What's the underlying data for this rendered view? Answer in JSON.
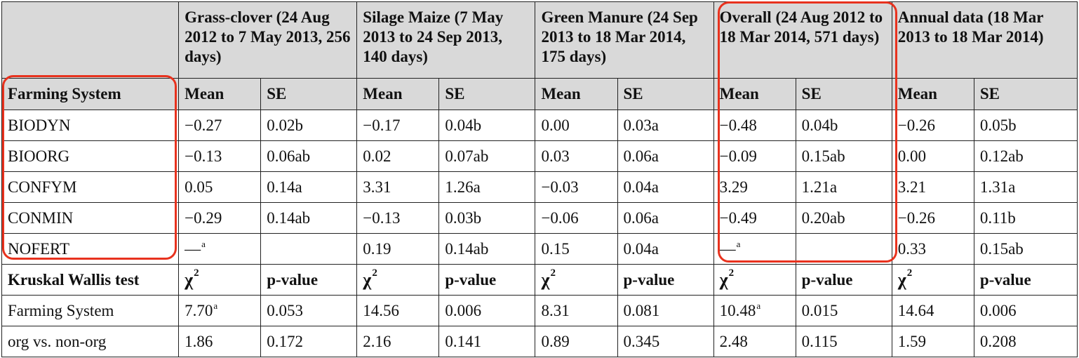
{
  "periods": [
    {
      "title": "Grass-clover (24 Aug 2012 to 7 May 2013, 256 days)"
    },
    {
      "title": "Silage Maize (7 May 2013 to 24 Sep 2013, 140 days)"
    },
    {
      "title": "Green Manure (24 Sep 2013 to 18 Mar 2014, 175 days)"
    },
    {
      "title": "Overall (24 Aug 2012 to 18 Mar 2014, 571 days)"
    },
    {
      "title": "Annual data (18 Mar 2013 to 18 Mar 2014)"
    }
  ],
  "labels": {
    "farming_system": "Farming System",
    "mean": "Mean",
    "se": "SE",
    "kruskal": "Kruskal Wallis test",
    "chi": "χ",
    "chi_sup": "2",
    "pvalue": "p-value"
  },
  "rows": [
    {
      "name": "BIODYN",
      "cells": [
        {
          "v": "−0.27",
          "s": ""
        },
        {
          "v": "0.02b",
          "s": ""
        },
        {
          "v": "−0.17",
          "s": ""
        },
        {
          "v": "0.04b",
          "s": ""
        },
        {
          "v": "0.00",
          "s": ""
        },
        {
          "v": "0.03a",
          "s": ""
        },
        {
          "v": "−0.48",
          "s": ""
        },
        {
          "v": "0.04b",
          "s": ""
        },
        {
          "v": "−0.26",
          "s": ""
        },
        {
          "v": "0.05b",
          "s": ""
        }
      ]
    },
    {
      "name": "BIOORG",
      "cells": [
        {
          "v": "−0.13",
          "s": ""
        },
        {
          "v": "0.06ab",
          "s": ""
        },
        {
          "v": "0.02",
          "s": ""
        },
        {
          "v": "0.07ab",
          "s": ""
        },
        {
          "v": "0.03",
          "s": ""
        },
        {
          "v": "0.06a",
          "s": ""
        },
        {
          "v": "−0.09",
          "s": ""
        },
        {
          "v": "0.15ab",
          "s": ""
        },
        {
          "v": "0.00",
          "s": ""
        },
        {
          "v": "0.12ab",
          "s": ""
        }
      ]
    },
    {
      "name": "CONFYM",
      "cells": [
        {
          "v": "0.05",
          "s": ""
        },
        {
          "v": "0.14a",
          "s": ""
        },
        {
          "v": "3.31",
          "s": ""
        },
        {
          "v": "1.26a",
          "s": ""
        },
        {
          "v": "−0.03",
          "s": ""
        },
        {
          "v": "0.04a",
          "s": ""
        },
        {
          "v": "3.29",
          "s": ""
        },
        {
          "v": "1.21a",
          "s": ""
        },
        {
          "v": "3.21",
          "s": ""
        },
        {
          "v": "1.31a",
          "s": ""
        }
      ]
    },
    {
      "name": "CONMIN",
      "cells": [
        {
          "v": "−0.29",
          "s": ""
        },
        {
          "v": "0.14ab",
          "s": ""
        },
        {
          "v": "−0.13",
          "s": ""
        },
        {
          "v": "0.03b",
          "s": ""
        },
        {
          "v": "−0.06",
          "s": ""
        },
        {
          "v": "0.06a",
          "s": ""
        },
        {
          "v": "−0.49",
          "s": ""
        },
        {
          "v": "0.20ab",
          "s": ""
        },
        {
          "v": "−0.26",
          "s": ""
        },
        {
          "v": "0.11b",
          "s": ""
        }
      ]
    },
    {
      "name": "NOFERT",
      "cells": [
        {
          "v": "—",
          "s": "a"
        },
        {
          "v": "",
          "s": ""
        },
        {
          "v": "0.19",
          "s": ""
        },
        {
          "v": "0.14ab",
          "s": ""
        },
        {
          "v": "0.15",
          "s": ""
        },
        {
          "v": "0.04a",
          "s": ""
        },
        {
          "v": "—",
          "s": "a"
        },
        {
          "v": "",
          "s": ""
        },
        {
          "v": "0.33",
          "s": ""
        },
        {
          "v": "0.15ab",
          "s": ""
        }
      ]
    }
  ],
  "tests": [
    {
      "name": "Farming System",
      "cells": [
        {
          "v": "7.70",
          "s": "a"
        },
        {
          "v": "0.053",
          "s": ""
        },
        {
          "v": "14.56",
          "s": ""
        },
        {
          "v": "0.006",
          "s": ""
        },
        {
          "v": "8.31",
          "s": ""
        },
        {
          "v": "0.081",
          "s": ""
        },
        {
          "v": "10.48",
          "s": "a"
        },
        {
          "v": "0.015",
          "s": ""
        },
        {
          "v": "14.64",
          "s": ""
        },
        {
          "v": "0.006",
          "s": ""
        }
      ]
    },
    {
      "name": "org vs. non-org",
      "cells": [
        {
          "v": "1.86",
          "s": ""
        },
        {
          "v": "0.172",
          "s": ""
        },
        {
          "v": "2.16",
          "s": ""
        },
        {
          "v": "0.141",
          "s": ""
        },
        {
          "v": "0.89",
          "s": ""
        },
        {
          "v": "0.345",
          "s": ""
        },
        {
          "v": "2.48",
          "s": ""
        },
        {
          "v": "0.115",
          "s": ""
        },
        {
          "v": "1.59",
          "s": ""
        },
        {
          "v": "0.208",
          "s": ""
        }
      ]
    }
  ],
  "highlight_color": "#e8321e",
  "header_bg": "#d9d9d9"
}
